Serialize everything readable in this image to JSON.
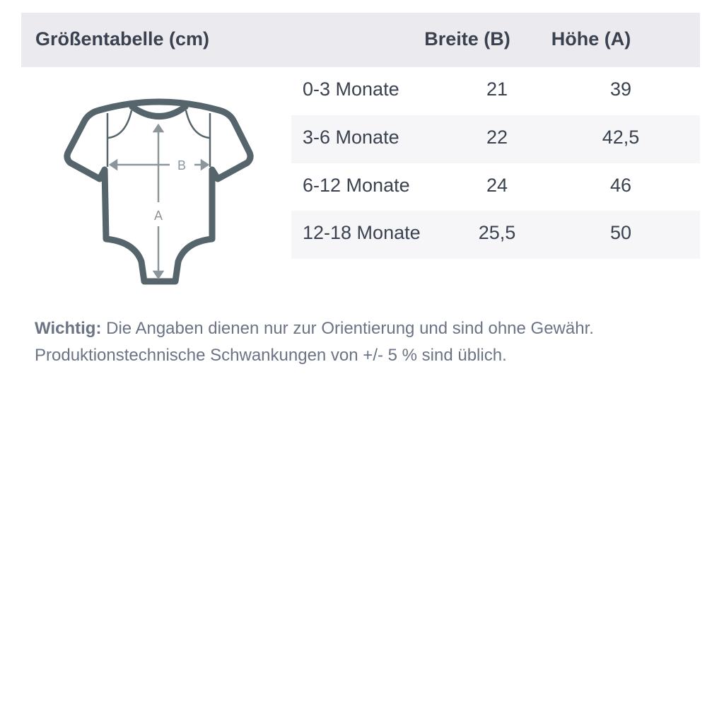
{
  "header": {
    "title": "Größentabelle (cm)",
    "col_width": "Breite (B)",
    "col_height": "Höhe (A)"
  },
  "rows": [
    {
      "size": "0-3 Monate",
      "width": "21",
      "height": "39"
    },
    {
      "size": "3-6 Monate",
      "width": "22",
      "height": "42,5"
    },
    {
      "size": "6-12 Monate",
      "width": "24",
      "height": "46"
    },
    {
      "size": "12-18 Monate",
      "width": "25,5",
      "height": "50"
    }
  ],
  "diagram": {
    "label_b": "B",
    "label_a": "A",
    "outline_color": "#56646c",
    "arrow_color": "#8a959c"
  },
  "note": {
    "label": "Wichtig:",
    "line1": "Die Angaben dienen nur zur Orientierung und sind ohne Gewähr.",
    "line2": "Produktionstechnische Schwankungen von +/- 5 % sind üblich."
  }
}
